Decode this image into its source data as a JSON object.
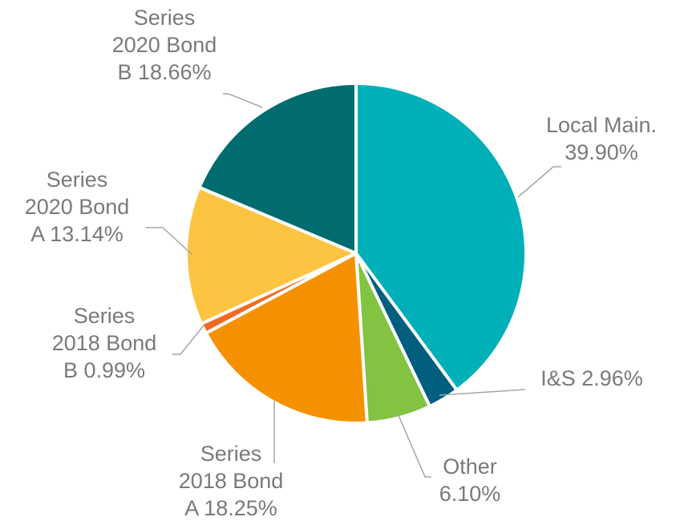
{
  "chart_data": {
    "type": "pie",
    "title": "",
    "slices": [
      {
        "label_lines": [
          "Local Main.",
          "39.90%"
        ],
        "value": 39.9,
        "color": "#00b0b9"
      },
      {
        "label_lines": [
          "I&S 2.96%"
        ],
        "value": 2.96,
        "color": "#005e7e"
      },
      {
        "label_lines": [
          "Other",
          "6.10%"
        ],
        "value": 6.1,
        "color": "#82c341"
      },
      {
        "label_lines": [
          "Series",
          "2018 Bond",
          "A 18.25%"
        ],
        "value": 18.25,
        "color": "#f59100"
      },
      {
        "label_lines": [
          "Series",
          "2018 Bond",
          "B 0.99%"
        ],
        "value": 0.99,
        "color": "#ef6c22"
      },
      {
        "label_lines": [
          "Series",
          "2020 Bond",
          "A 13.14%"
        ],
        "value": 13.14,
        "color": "#fdc441"
      },
      {
        "label_lines": [
          "Series",
          "2020 Bond",
          "B 18.66%"
        ],
        "value": 18.66,
        "color": "#006c70"
      }
    ]
  }
}
